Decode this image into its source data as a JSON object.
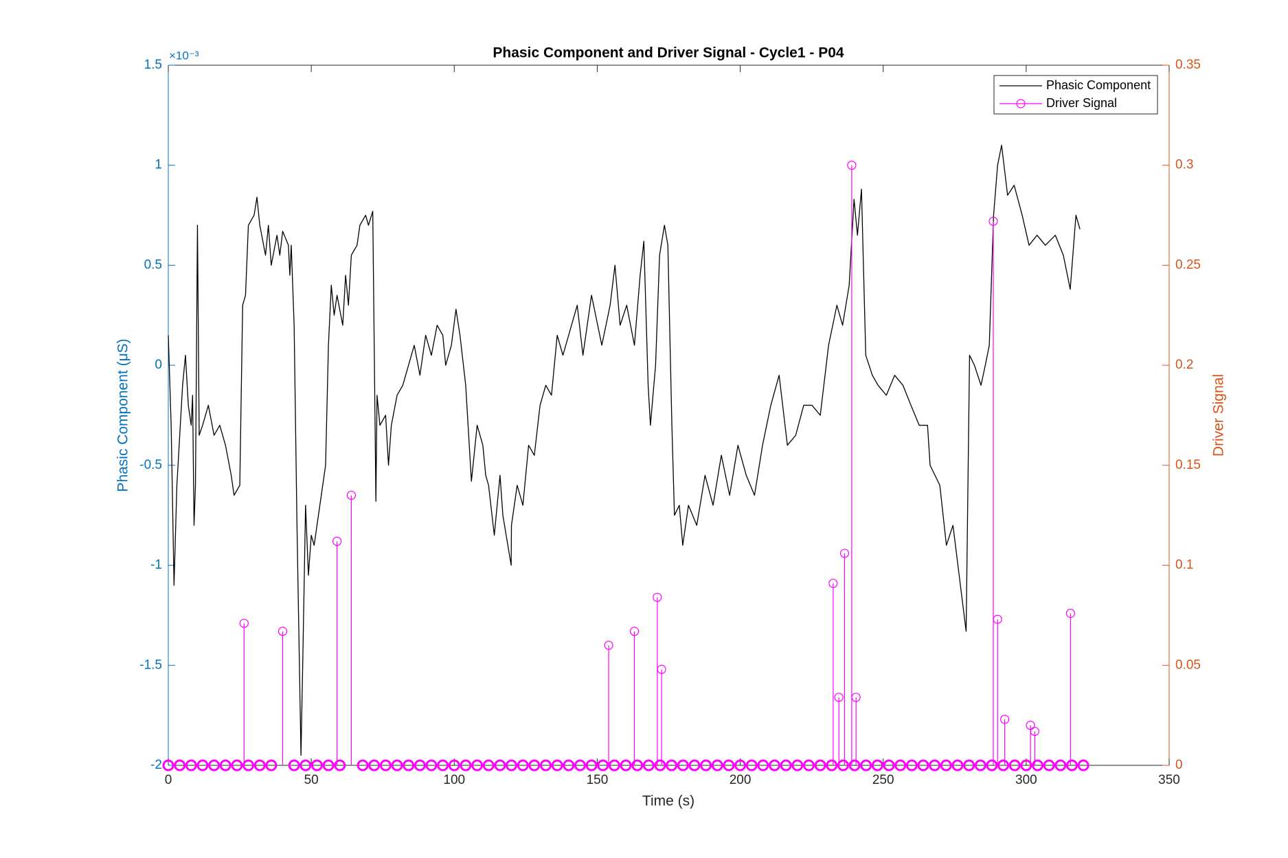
{
  "chart_data": {
    "type": "line",
    "title": "Phasic Component and Driver Signal - Cycle1 - P04",
    "xlabel": "Time (s)",
    "ylabel": "Phasic Component (μS)",
    "y2label": "Driver Signal",
    "y_exponent_label": "×10⁻³",
    "xlim": [
      0,
      350
    ],
    "xticks": [
      0,
      50,
      100,
      150,
      200,
      250,
      300,
      350
    ],
    "ylim": [
      -2,
      1.5
    ],
    "yticks": [
      -2,
      -1.5,
      -1,
      -0.5,
      0,
      0.5,
      1,
      1.5
    ],
    "y2lim": [
      0,
      0.35
    ],
    "y2ticks": [
      0,
      0.05,
      0.1,
      0.15,
      0.2,
      0.25,
      0.3,
      0.35
    ],
    "ycolor": "#0072bd",
    "y2color": "#d95319",
    "legend": "top-right",
    "series": [
      {
        "name": "Phasic Component",
        "color": "#000000",
        "type": "line",
        "x": [
          0,
          1,
          2,
          3,
          5,
          6,
          7,
          8,
          8.5,
          9,
          9.5,
          10.2,
          10.8,
          12,
          14,
          16,
          18,
          20,
          22,
          23,
          25,
          26,
          27,
          28,
          30,
          31,
          32,
          34,
          35,
          36,
          38,
          39,
          40,
          42,
          42.5,
          43,
          44,
          45,
          46.4,
          47,
          48,
          49,
          50,
          51,
          53,
          55,
          56,
          57,
          58,
          59,
          61,
          62,
          63,
          64,
          66,
          67,
          69,
          70,
          71.5,
          72.6,
          73,
          74,
          76,
          77,
          78,
          80,
          82,
          84,
          86,
          88,
          89,
          90,
          92,
          94,
          96,
          97,
          99,
          100.6,
          102,
          104,
          106,
          108,
          110,
          111,
          112,
          114,
          116,
          117,
          119.9,
          120,
          122,
          124,
          126,
          128,
          130,
          132,
          134,
          136,
          138,
          140,
          143,
          145,
          148,
          151.6,
          154.5,
          156.2,
          158,
          160.3,
          163,
          165,
          166.3,
          167.8,
          168.6,
          170.4,
          171.8,
          173.5,
          174.7,
          176.1,
          177,
          178.7,
          179.9,
          181.9,
          184.8,
          187.7,
          190.5,
          193.4,
          196.3,
          199.2,
          202.1,
          205,
          207.8,
          210.7,
          213.6,
          216.5,
          219.4,
          222.2,
          225.1,
          228,
          230.9,
          233.8,
          235.8,
          238.1,
          239.8,
          241,
          242.4,
          243.9,
          246.2,
          248.2,
          251.1,
          254,
          256.9,
          259.7,
          262.6,
          265.5,
          266.4,
          269.8,
          272.1,
          274.4,
          277,
          279,
          280.2,
          281.9,
          284.2,
          285.7,
          287.1,
          288.6,
          290,
          291.4,
          293.5,
          295.8,
          298.6,
          301,
          303.8,
          306.7,
          310.2,
          313,
          315.4,
          317.4,
          318.8
        ],
        "values": [
          0.15,
          -0.3,
          -1.1,
          -0.6,
          -0.1,
          0.05,
          -0.2,
          -0.3,
          -0.15,
          -0.8,
          -0.6,
          0.7,
          -0.35,
          -0.3,
          -0.2,
          -0.35,
          -0.3,
          -0.4,
          -0.55,
          -0.65,
          -0.6,
          0.3,
          0.35,
          0.7,
          0.75,
          0.84,
          0.7,
          0.55,
          0.7,
          0.5,
          0.65,
          0.55,
          0.67,
          0.6,
          0.45,
          0.6,
          0.2,
          -0.8,
          -1.95,
          -1.5,
          -0.7,
          -1.05,
          -0.85,
          -0.9,
          -0.7,
          -0.5,
          0.1,
          0.4,
          0.25,
          0.35,
          0.2,
          0.45,
          0.3,
          0.55,
          0.6,
          0.7,
          0.75,
          0.7,
          0.77,
          -0.68,
          -0.15,
          -0.3,
          -0.25,
          -0.5,
          -0.3,
          -0.15,
          -0.1,
          0,
          0.1,
          -0.05,
          0.05,
          0.15,
          0.05,
          0.2,
          0.15,
          0,
          0.1,
          0.28,
          0.15,
          -0.1,
          -0.58,
          -0.3,
          -0.4,
          -0.55,
          -0.6,
          -0.85,
          -0.55,
          -0.75,
          -1.0,
          -0.8,
          -0.6,
          -0.7,
          -0.4,
          -0.45,
          -0.2,
          -0.1,
          -0.15,
          0.15,
          0.05,
          0.15,
          0.3,
          0.05,
          0.35,
          0.1,
          0.3,
          0.5,
          0.2,
          0.3,
          0.1,
          0.45,
          0.62,
          -0.1,
          -0.3,
          0,
          0.55,
          0.7,
          0.6,
          -0.3,
          -0.75,
          -0.7,
          -0.9,
          -0.7,
          -0.8,
          -0.55,
          -0.7,
          -0.45,
          -0.65,
          -0.4,
          -0.55,
          -0.65,
          -0.4,
          -0.2,
          -0.05,
          -0.4,
          -0.35,
          -0.2,
          -0.2,
          -0.25,
          0.1,
          0.3,
          0.2,
          0.4,
          0.83,
          0.65,
          0.88,
          0.05,
          -0.05,
          -0.1,
          -0.15,
          -0.05,
          -0.1,
          -0.2,
          -0.3,
          -0.3,
          -0.5,
          -0.6,
          -0.9,
          -0.8,
          -1.1,
          -1.33,
          0.05,
          0,
          -0.1,
          0,
          0.1,
          0.75,
          1.0,
          1.1,
          0.85,
          0.9,
          0.75,
          0.6,
          0.65,
          0.6,
          0.65,
          0.55,
          0.38,
          0.75,
          0.68
        ]
      },
      {
        "name": "Driver Signal",
        "color": "#ff00ff",
        "type": "stem",
        "axis": "y2",
        "x": [
          0,
          4,
          8,
          12,
          16,
          20,
          24,
          26.5,
          28,
          32,
          36,
          40,
          44,
          48,
          52,
          56,
          59,
          60,
          64,
          68,
          72,
          76,
          80,
          84,
          88,
          92,
          96,
          100,
          104,
          108,
          112,
          116,
          120,
          124,
          128,
          132,
          136,
          140,
          144,
          148,
          152,
          154,
          156,
          160,
          163,
          164,
          168,
          171,
          172,
          172.5,
          176,
          180,
          184,
          188,
          192,
          196,
          200,
          204,
          208,
          212,
          216,
          220,
          224,
          228,
          232,
          232.5,
          234.5,
          236,
          236.5,
          239,
          240,
          240.5,
          244,
          248,
          252,
          256,
          260,
          264,
          268,
          272,
          276,
          280,
          284,
          288,
          288.5,
          290,
          292,
          292.5,
          296,
          300,
          301.5,
          303,
          304,
          308,
          312,
          315.5,
          316,
          320
        ],
        "values": [
          0,
          0,
          0,
          0,
          0,
          0,
          0,
          0.071,
          0,
          0,
          0,
          0.067,
          0,
          0,
          0,
          0,
          0.112,
          0,
          0.135,
          0,
          0,
          0,
          0,
          0,
          0,
          0,
          0,
          0,
          0,
          0,
          0,
          0,
          0,
          0,
          0,
          0,
          0,
          0,
          0,
          0,
          0,
          0.06,
          0,
          0,
          0.067,
          0,
          0,
          0.084,
          0,
          0.048,
          0,
          0,
          0,
          0,
          0,
          0,
          0,
          0,
          0,
          0,
          0,
          0,
          0,
          0,
          0,
          0.091,
          0.034,
          0,
          0.106,
          0.3,
          0,
          0.034,
          0,
          0,
          0,
          0,
          0,
          0,
          0,
          0,
          0,
          0,
          0,
          0,
          0.272,
          0.073,
          0,
          0.023,
          0,
          0,
          0.02,
          0.017,
          0,
          0,
          0,
          0.076,
          0,
          0
        ]
      }
    ]
  }
}
